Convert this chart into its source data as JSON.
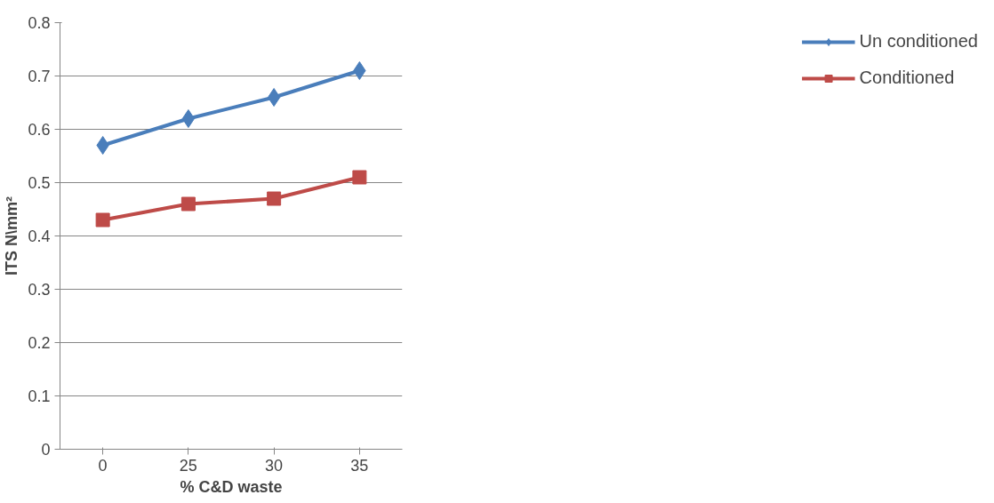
{
  "chart_data": {
    "type": "line",
    "xlabel": "% C&D waste",
    "ylabel": "ITS N\\mm²",
    "categories": [
      "0",
      "25",
      "30",
      "35"
    ],
    "series": [
      {
        "name": "Un conditioned",
        "color": "#4a7ebb",
        "marker": "diamond",
        "values": [
          0.57,
          0.62,
          0.66,
          0.71
        ]
      },
      {
        "name": "Conditioned",
        "color": "#be4b48",
        "marker": "square",
        "values": [
          0.43,
          0.46,
          0.47,
          0.51
        ]
      }
    ],
    "ylim": [
      0,
      0.8
    ],
    "yticks": [
      0,
      0.1,
      0.2,
      0.3,
      0.4,
      0.5,
      0.6,
      0.7,
      0.8
    ],
    "grid": "y",
    "legend": "right",
    "line_style": "solid"
  }
}
